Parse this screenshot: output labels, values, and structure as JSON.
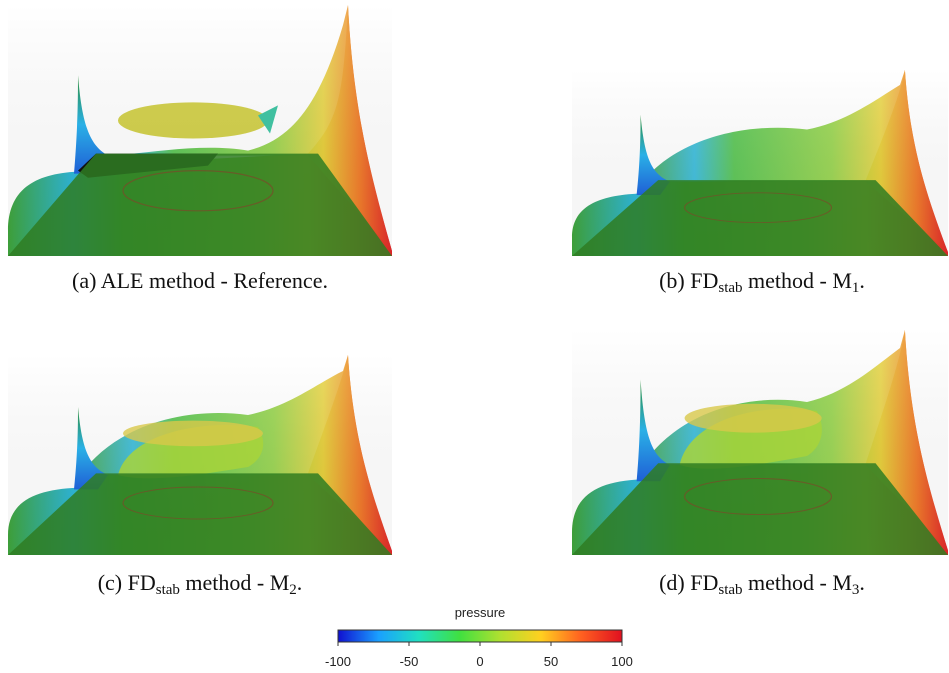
{
  "captions": [
    [
      {
        "text": "(a) ALE method - Reference."
      }
    ],
    [
      {
        "text": "(b) FD"
      },
      {
        "text": "stab",
        "sub": true
      },
      {
        "text": " method - M"
      },
      {
        "text": "1",
        "sub": true
      },
      {
        "text": "."
      }
    ],
    [
      {
        "text": "(c) FD"
      },
      {
        "text": "stab",
        "sub": true
      },
      {
        "text": " method - M"
      },
      {
        "text": "2",
        "sub": true
      },
      {
        "text": "."
      }
    ],
    [
      {
        "text": "(d) FD"
      },
      {
        "text": "stab",
        "sub": true
      },
      {
        "text": " method - M"
      },
      {
        "text": "3",
        "sub": true
      },
      {
        "text": "."
      }
    ]
  ],
  "colorbar": {
    "title": "pressure",
    "lim": [
      -100,
      100
    ],
    "ticks": [
      -100,
      -50,
      0,
      50,
      100
    ],
    "colors": [
      "#1010d0",
      "#1aa0ff",
      "#20e0c0",
      "#40e040",
      "#b0e030",
      "#ffd020",
      "#ff6020",
      "#e01020"
    ]
  }
}
